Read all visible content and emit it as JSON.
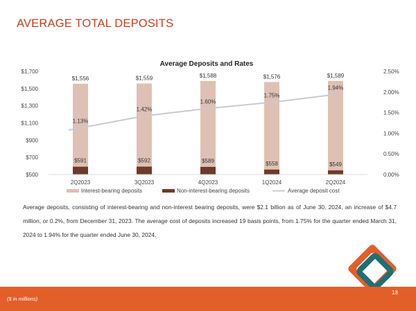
{
  "slide": {
    "title": "AVERAGE TOTAL DEPOSITS",
    "body": "Average deposits, consisting of interest-bearing and non-interest bearing deposits, were $2.1 billion as of June 30, 2024, an increase of $4.7 million, or 0.2%, from December 31, 2023. The average cost of deposits increased 19 basis points, from 1.75% for the quarter ended March 31, 2024 to 1.94% for the quarter ended June 30, 2024.",
    "footnote": "($ in millions)",
    "page_number": "18"
  },
  "colors": {
    "interest_bearing": "#dfc0b5",
    "non_interest_bearing": "#6e3a28",
    "avg_cost_line": "#c9c9cf",
    "footer": "#e35f2a",
    "logo_orange": "#e35f2a",
    "logo_teal": "#1e6f73"
  },
  "chart_data": {
    "type": "bar",
    "title": "Average Deposits and Rates",
    "categories": [
      "2Q2023",
      "3Q2023",
      "4Q2023",
      "1Q2024",
      "2Q2024"
    ],
    "series": [
      {
        "name": "Interest-bearing deposits",
        "axis": "left",
        "values": [
          1556,
          1559,
          1588,
          1576,
          1589
        ],
        "labels": [
          "$1,556",
          "$1,559",
          "$1,588",
          "$1,576",
          "$1,589"
        ]
      },
      {
        "name": "Non-interest-bearing deposits",
        "axis": "left",
        "values": [
          591,
          592,
          589,
          558,
          549
        ],
        "labels": [
          "$591",
          "$592",
          "$589",
          "$558",
          "$549"
        ]
      },
      {
        "name": "Average deposit cost",
        "axis": "right",
        "type": "line",
        "values": [
          1.13,
          1.42,
          1.6,
          1.75,
          1.94
        ],
        "labels": [
          "1.13%",
          "1.42%",
          "1.60%",
          "1.75%",
          "1.94%"
        ]
      }
    ],
    "y_left": {
      "min": 500,
      "max": 1700,
      "ticks": [
        500,
        700,
        900,
        1100,
        1300,
        1500,
        1700
      ],
      "tick_labels": [
        "$500",
        "$700",
        "$900",
        "$1,100",
        "$1,300",
        "$1,500",
        "$1,700"
      ]
    },
    "y_right": {
      "min": 0,
      "max": 2.5,
      "ticks": [
        0,
        0.5,
        1,
        1.5,
        2,
        2.5
      ],
      "tick_labels": [
        "0.00%",
        "0.50%",
        "1.00%",
        "1.50%",
        "2.00%",
        "2.50%"
      ]
    },
    "grid": false,
    "legend": "bottom"
  }
}
